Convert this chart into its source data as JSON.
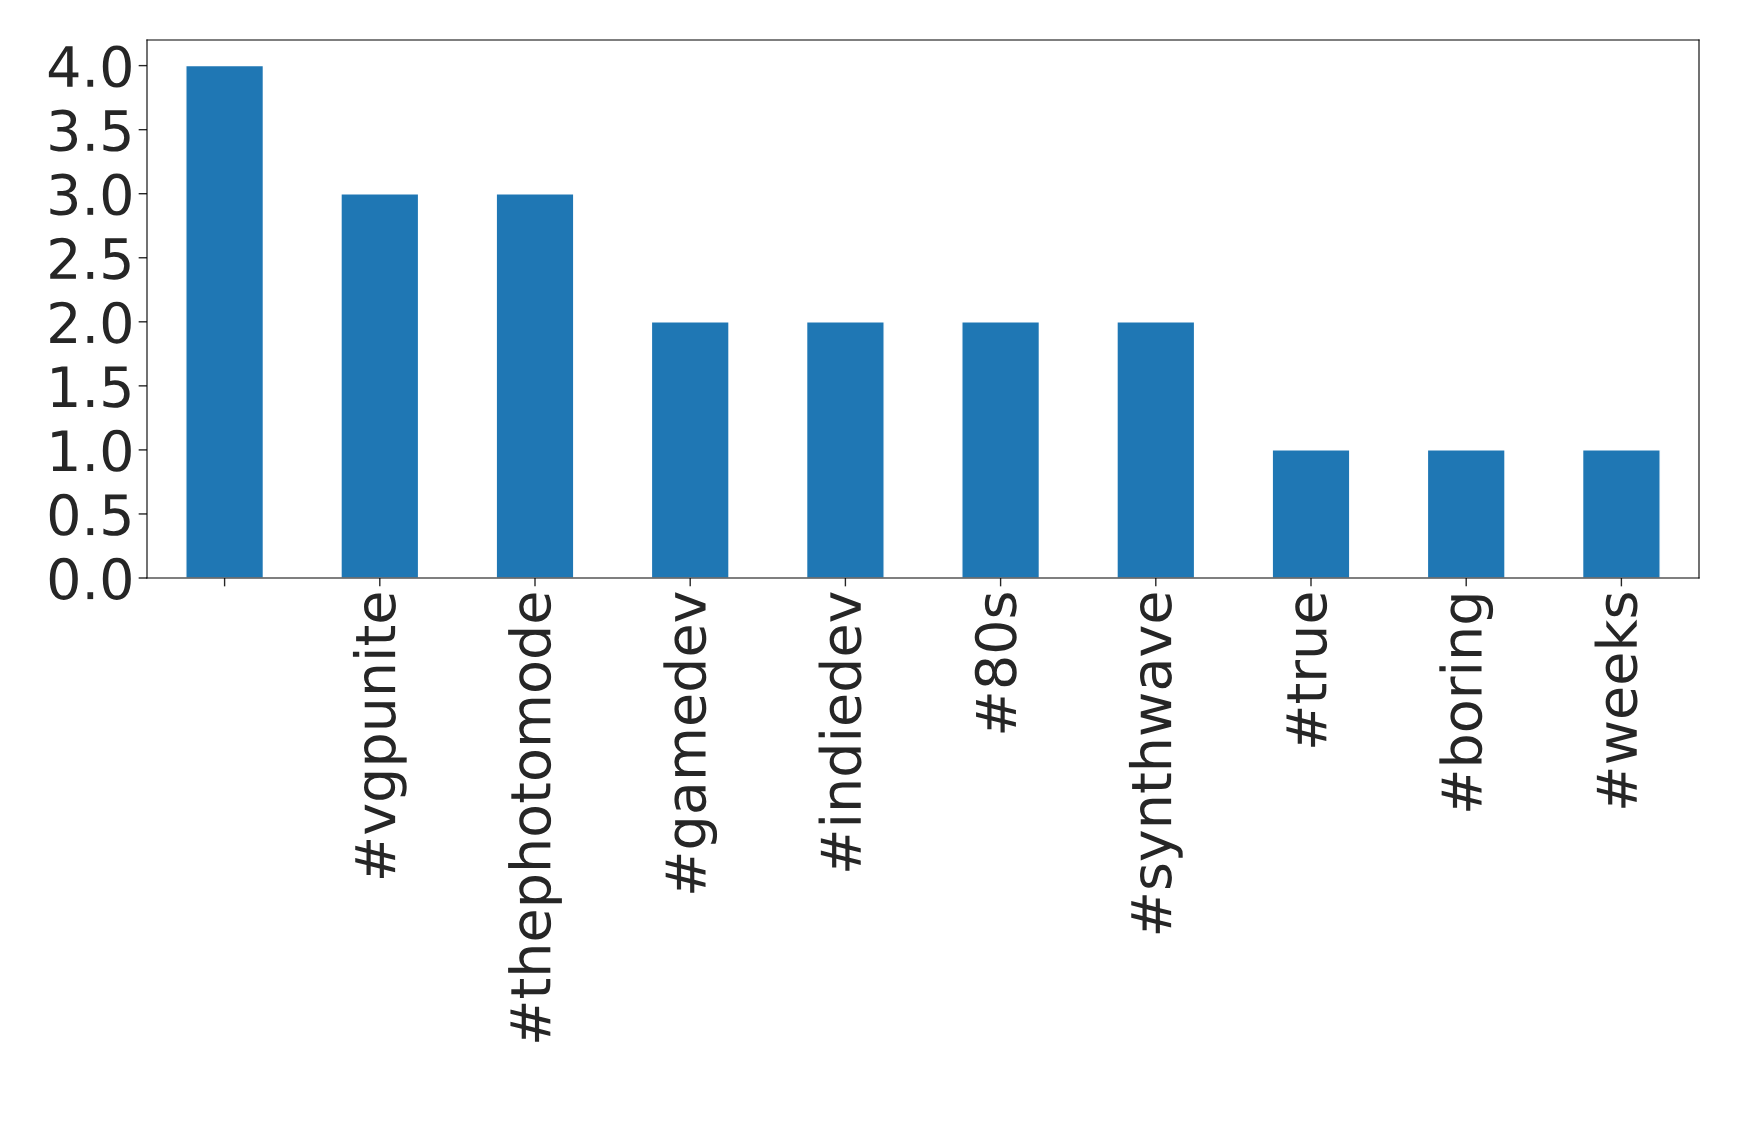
{
  "chart_data": {
    "type": "bar",
    "categories": [
      null,
      "#vgpunite",
      "#thephotomode",
      "#gamedev",
      "#indiedev",
      "#80s",
      "#synthwave",
      "#true",
      "#boring",
      "#weeks"
    ],
    "values": [
      4,
      3,
      3,
      2,
      2,
      2,
      2,
      1,
      1,
      1
    ],
    "color": "#1f77b4",
    "ylim": [
      0,
      4.2
    ],
    "yticks": [
      {
        "value": 0,
        "label": "0.0"
      },
      {
        "value": 0.5,
        "label": "0.5"
      },
      {
        "value": 1,
        "label": "1.0"
      },
      {
        "value": 1.5,
        "label": "1.5"
      },
      {
        "value": 2,
        "label": "2.0"
      },
      {
        "value": 2.5,
        "label": "2.5"
      },
      {
        "value": 3,
        "label": "3.0"
      },
      {
        "value": 3.5,
        "label": "3.5"
      },
      {
        "value": 4,
        "label": "4.0"
      }
    ],
    "grid": false,
    "legend": false
  }
}
